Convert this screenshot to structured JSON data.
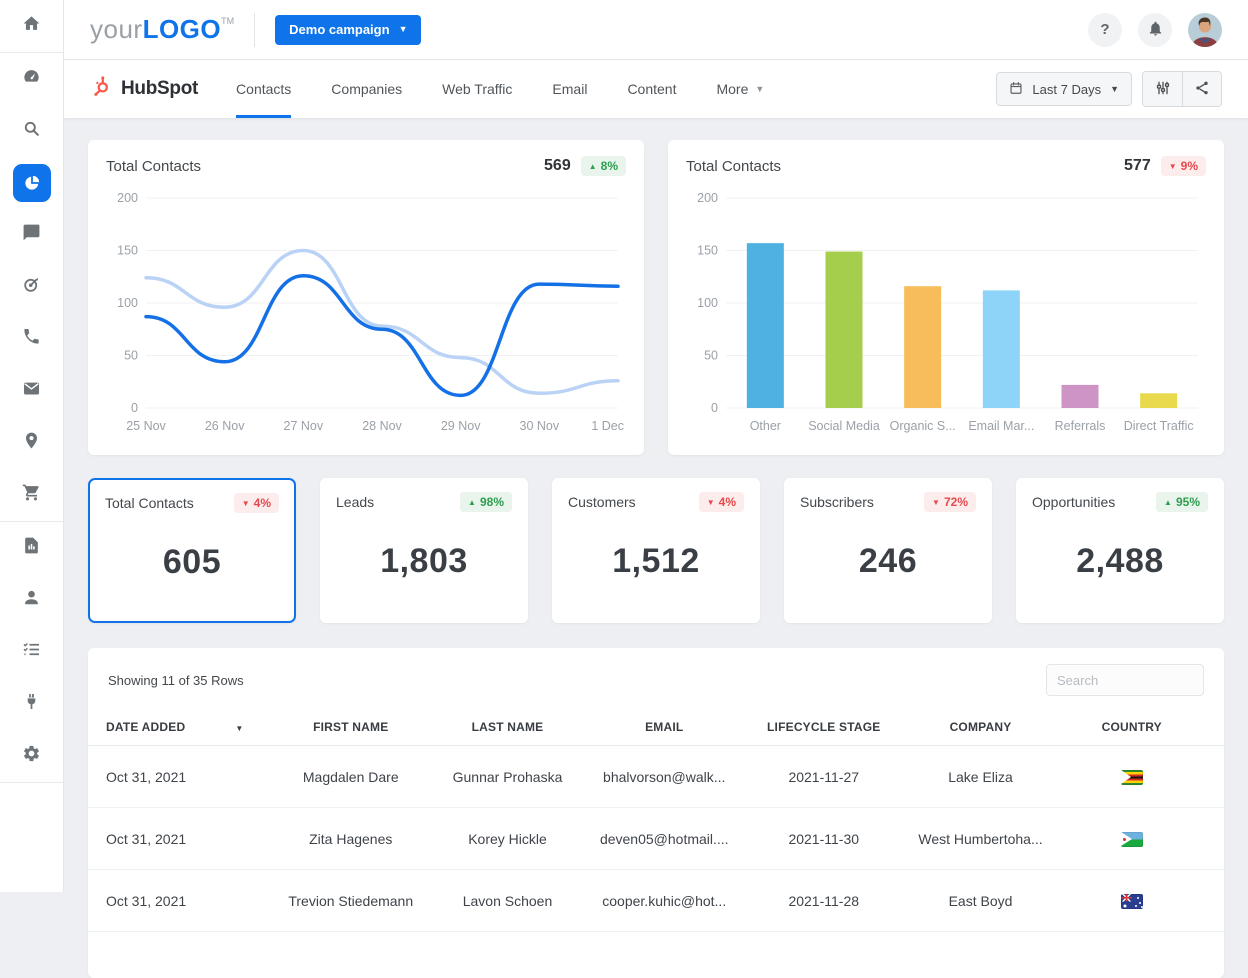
{
  "header": {
    "logo": {
      "prefix": "your",
      "name": "LOGO",
      "tm": "TM"
    },
    "campaign_button_label": "Demo campaign",
    "icons": [
      "help-icon",
      "notifications-bell-icon",
      "user-avatar"
    ]
  },
  "sidebar": {
    "icons": [
      "home",
      "dashboard",
      "search",
      "pie-chart",
      "chat",
      "ads",
      "phone",
      "mail",
      "location",
      "cart",
      "report",
      "user",
      "checklist",
      "integrations",
      "settings"
    ],
    "active_icon": "pie-chart"
  },
  "nav": {
    "brand": "HubSpot",
    "tabs": [
      {
        "label": "Contacts",
        "active": true
      },
      {
        "label": "Companies"
      },
      {
        "label": "Web Traffic"
      },
      {
        "label": "Email"
      },
      {
        "label": "Content"
      },
      {
        "label": "More",
        "dropdown": true
      }
    ],
    "date_range": "Last 7 Days",
    "toolbar_icons": [
      "filter-sliders-icon",
      "share-icon"
    ]
  },
  "line_card": {
    "title": "Total Contacts",
    "value": "569",
    "delta": "8%",
    "delta_dir": "up"
  },
  "bar_card": {
    "title": "Total Contacts",
    "value": "577",
    "delta": "9%",
    "delta_dir": "down"
  },
  "kpis": [
    {
      "label": "Total Contacts",
      "value": "605",
      "delta": "4%",
      "dir": "down",
      "selected": true
    },
    {
      "label": "Leads",
      "value": "1,803",
      "delta": "98%",
      "dir": "up"
    },
    {
      "label": "Customers",
      "value": "1,512",
      "delta": "4%",
      "dir": "down"
    },
    {
      "label": "Subscribers",
      "value": "246",
      "delta": "72%",
      "dir": "down"
    },
    {
      "label": "Opportunities",
      "value": "2,488",
      "delta": "95%",
      "dir": "up"
    }
  ],
  "table": {
    "summary": "Showing 11 of 35 Rows",
    "search_placeholder": "Search",
    "columns": [
      "DATE ADDED",
      "FIRST NAME",
      "LAST NAME",
      "EMAIL",
      "LIFECYCLE STAGE",
      "COMPANY",
      "COUNTRY"
    ],
    "sorted_column": "DATE ADDED",
    "rows": [
      {
        "date_added": "Oct 31, 2021",
        "first_name": "Magdalen Dare",
        "last_name": "Gunnar Prohaska",
        "email": "bhalvorson@walk...",
        "lifecycle_stage": "2021-11-27",
        "company": "Lake Eliza",
        "country_flag": "zimbabwe",
        "flag_class": "flag flag-zw"
      },
      {
        "date_added": "Oct 31, 2021",
        "first_name": "Zita Hagenes",
        "last_name": "Korey Hickle",
        "email": "deven05@hotmail....",
        "lifecycle_stage": "2021-11-30",
        "company": "West Humbertoha...",
        "country_flag": "djibouti",
        "flag_class": "flag flag-dj"
      },
      {
        "date_added": "Oct 31, 2021",
        "first_name": "Trevion Stiedemann",
        "last_name": "Lavon Schoen",
        "email": "cooper.kuhic@hot...",
        "lifecycle_stage": "2021-11-28",
        "company": "East Boyd",
        "country_flag": "australia",
        "flag_class": "flag flag-au"
      }
    ]
  },
  "colors": {
    "accent_blue": "#0f74ea",
    "hubspot_orange": "#f8574b",
    "positive_green": "#2e9e4f",
    "negative_red": "#e5494d",
    "line_current": "#1470e6",
    "line_previous": "#b9d2f6"
  },
  "chart_data": [
    {
      "type": "line",
      "title": "Total Contacts",
      "x": [
        "25 Nov",
        "26 Nov",
        "27 Nov",
        "28 Nov",
        "29 Nov",
        "30 Nov",
        "1 Dec"
      ],
      "series": [
        {
          "name": "current period",
          "color": "#1470e6",
          "values": [
            87,
            44,
            126,
            75,
            12,
            118,
            116
          ]
        },
        {
          "name": "previous period",
          "color": "#b9d2f6",
          "values": [
            124,
            96,
            150,
            78,
            48,
            14,
            26
          ]
        }
      ],
      "ylim": [
        0,
        200
      ],
      "yticks": [
        0,
        50,
        100,
        150,
        200
      ],
      "grid": "horizontal",
      "legend": "none"
    },
    {
      "type": "bar",
      "title": "Total Contacts",
      "categories": [
        "Other",
        "Social Media",
        "Organic S...",
        "Email Mar...",
        "Referrals",
        "Direct Traffic"
      ],
      "values": [
        157,
        149,
        116,
        112,
        22,
        14
      ],
      "colors": [
        "#4fb1e2",
        "#a5ce4d",
        "#f6bd5a",
        "#8ed3f8",
        "#cf94c6",
        "#e9d94d"
      ],
      "ylim": [
        0,
        200
      ],
      "yticks": [
        0,
        50,
        100,
        150,
        200
      ],
      "grid": "horizontal",
      "legend": "none"
    }
  ]
}
